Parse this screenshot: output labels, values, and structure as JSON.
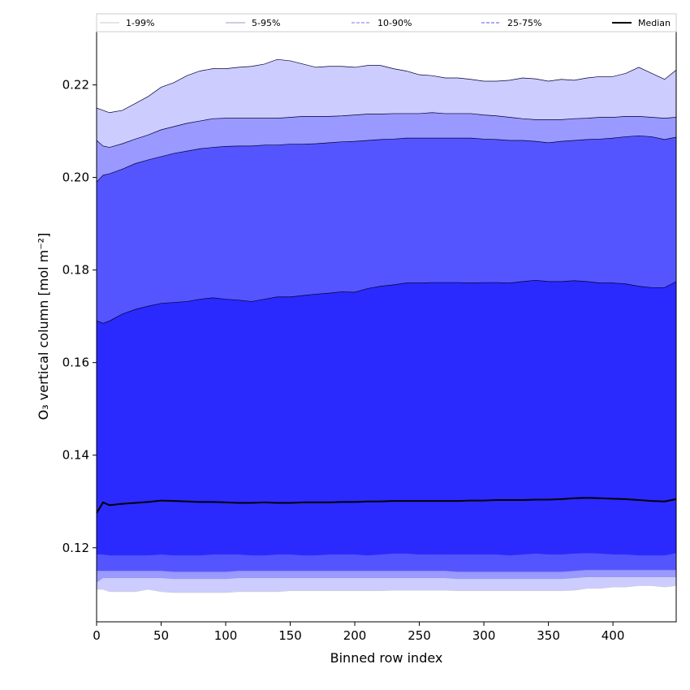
{
  "chart_data": {
    "type": "area",
    "xlabel": "Binned row index",
    "ylabel": "O₃ vertical column [mol m⁻²]",
    "xlim": [
      0,
      449
    ],
    "ylim": [
      0.104,
      0.2315
    ],
    "x_ticks": [
      0,
      50,
      100,
      150,
      200,
      250,
      300,
      350,
      400
    ],
    "y_ticks": [
      0.12,
      0.14,
      0.16,
      0.18,
      0.2,
      0.22
    ],
    "legend_position": "top",
    "x": [
      0,
      5,
      10,
      20,
      30,
      40,
      50,
      60,
      70,
      80,
      90,
      100,
      110,
      120,
      130,
      140,
      150,
      160,
      170,
      180,
      190,
      200,
      210,
      220,
      230,
      240,
      250,
      260,
      270,
      280,
      290,
      300,
      310,
      320,
      330,
      340,
      350,
      360,
      370,
      380,
      390,
      400,
      410,
      420,
      430,
      440,
      449
    ],
    "series": [
      {
        "name": "1-99%",
        "color": "#ccccff",
        "line_color": "#cccccc",
        "lower": [
          0.111,
          0.111,
          0.1105,
          0.1105,
          0.1105,
          0.111,
          0.1105,
          0.1103,
          0.1103,
          0.1103,
          0.1103,
          0.1103,
          0.1105,
          0.1105,
          0.1105,
          0.1105,
          0.1107,
          0.1107,
          0.1107,
          0.1107,
          0.1107,
          0.1107,
          0.1107,
          0.1107,
          0.1108,
          0.1108,
          0.1108,
          0.1108,
          0.1108,
          0.1107,
          0.1107,
          0.1107,
          0.1107,
          0.1107,
          0.1107,
          0.1107,
          0.1107,
          0.1107,
          0.1108,
          0.1112,
          0.1112,
          0.1115,
          0.1115,
          0.1118,
          0.1118,
          0.1115,
          0.1118
        ],
        "upper": [
          0.215,
          0.2145,
          0.214,
          0.2145,
          0.216,
          0.2175,
          0.2195,
          0.2205,
          0.222,
          0.223,
          0.2235,
          0.2235,
          0.2238,
          0.224,
          0.2245,
          0.2255,
          0.2252,
          0.2245,
          0.2238,
          0.224,
          0.224,
          0.2238,
          0.2242,
          0.2242,
          0.2235,
          0.223,
          0.2222,
          0.222,
          0.2215,
          0.2215,
          0.2212,
          0.2208,
          0.2208,
          0.221,
          0.2215,
          0.2213,
          0.2208,
          0.2212,
          0.221,
          0.2215,
          0.2218,
          0.2218,
          0.2225,
          0.2238,
          0.2225,
          0.2212,
          0.2232
        ]
      },
      {
        "name": "5-95%",
        "color": "#9999ff",
        "line_color": "#9999cc",
        "lower": [
          0.1125,
          0.1135,
          0.1135,
          0.1135,
          0.1135,
          0.1135,
          0.1135,
          0.1133,
          0.1133,
          0.1133,
          0.1133,
          0.1133,
          0.1135,
          0.1135,
          0.1135,
          0.1135,
          0.1135,
          0.1135,
          0.1135,
          0.1135,
          0.1135,
          0.1135,
          0.1135,
          0.1135,
          0.1135,
          0.1135,
          0.1135,
          0.1135,
          0.1135,
          0.1133,
          0.1133,
          0.1133,
          0.1133,
          0.1133,
          0.1133,
          0.1133,
          0.1133,
          0.1133,
          0.1135,
          0.1137,
          0.1137,
          0.1137,
          0.1137,
          0.1137,
          0.1137,
          0.1137,
          0.1137
        ],
        "upper": [
          0.208,
          0.2068,
          0.2065,
          0.2073,
          0.2083,
          0.2092,
          0.2103,
          0.211,
          0.2117,
          0.2122,
          0.2127,
          0.2128,
          0.2128,
          0.2128,
          0.2128,
          0.2128,
          0.213,
          0.2132,
          0.2132,
          0.2132,
          0.2133,
          0.2135,
          0.2137,
          0.2137,
          0.2138,
          0.2138,
          0.2138,
          0.214,
          0.2138,
          0.2138,
          0.2138,
          0.2135,
          0.2133,
          0.213,
          0.2127,
          0.2125,
          0.2125,
          0.2125,
          0.2127,
          0.2128,
          0.213,
          0.213,
          0.2132,
          0.2132,
          0.213,
          0.2128,
          0.213
        ]
      },
      {
        "name": "10-90%",
        "color": "#5555ff",
        "line_color": "#7777ee",
        "lower": [
          0.115,
          0.115,
          0.115,
          0.115,
          0.115,
          0.115,
          0.115,
          0.1148,
          0.1148,
          0.1148,
          0.1148,
          0.1148,
          0.115,
          0.115,
          0.115,
          0.115,
          0.115,
          0.115,
          0.115,
          0.115,
          0.115,
          0.115,
          0.115,
          0.115,
          0.115,
          0.115,
          0.115,
          0.115,
          0.115,
          0.1148,
          0.1148,
          0.1148,
          0.1148,
          0.1148,
          0.1148,
          0.1148,
          0.1148,
          0.1148,
          0.115,
          0.1152,
          0.1152,
          0.1152,
          0.1152,
          0.1152,
          0.1152,
          0.1152,
          0.1152
        ],
        "upper": [
          0.199,
          0.2005,
          0.2008,
          0.2018,
          0.203,
          0.2038,
          0.2045,
          0.2052,
          0.2057,
          0.2062,
          0.2065,
          0.2067,
          0.2068,
          0.2068,
          0.207,
          0.207,
          0.2072,
          0.2072,
          0.2073,
          0.2075,
          0.2077,
          0.2078,
          0.208,
          0.2082,
          0.2083,
          0.2085,
          0.2085,
          0.2085,
          0.2085,
          0.2085,
          0.2085,
          0.2083,
          0.2082,
          0.208,
          0.208,
          0.2078,
          0.2075,
          0.2078,
          0.208,
          0.2082,
          0.2083,
          0.2085,
          0.2088,
          0.209,
          0.2088,
          0.2082,
          0.2087
        ]
      },
      {
        "name": "25-75%",
        "color": "#2a2aff",
        "line_color": "#5555ee",
        "lower": [
          0.1185,
          0.1185,
          0.1183,
          0.1183,
          0.1183,
          0.1183,
          0.1185,
          0.1183,
          0.1183,
          0.1183,
          0.1185,
          0.1185,
          0.1185,
          0.1183,
          0.1183,
          0.1185,
          0.1185,
          0.1183,
          0.1183,
          0.1185,
          0.1185,
          0.1185,
          0.1183,
          0.1185,
          0.1187,
          0.1187,
          0.1185,
          0.1185,
          0.1185,
          0.1185,
          0.1185,
          0.1185,
          0.1185,
          0.1183,
          0.1185,
          0.1187,
          0.1185,
          0.1185,
          0.1187,
          0.1188,
          0.1187,
          0.1185,
          0.1185,
          0.1183,
          0.1183,
          0.1183,
          0.1188
        ],
        "upper": [
          0.169,
          0.1685,
          0.169,
          0.1705,
          0.1715,
          0.1722,
          0.1728,
          0.173,
          0.1732,
          0.1737,
          0.174,
          0.1737,
          0.1735,
          0.1732,
          0.1737,
          0.1742,
          0.1742,
          0.1745,
          0.1748,
          0.175,
          0.1753,
          0.1752,
          0.176,
          0.1765,
          0.1768,
          0.1772,
          0.1772,
          0.1773,
          0.1773,
          0.1773,
          0.1772,
          0.1773,
          0.1773,
          0.1772,
          0.1775,
          0.1778,
          0.1775,
          0.1775,
          0.1777,
          0.1775,
          0.1772,
          0.1772,
          0.177,
          0.1765,
          0.1762,
          0.1762,
          0.1775
        ]
      }
    ],
    "median": {
      "name": "Median",
      "color": "#000000",
      "values": [
        0.1275,
        0.1298,
        0.1292,
        0.1295,
        0.1297,
        0.1299,
        0.1302,
        0.1301,
        0.13,
        0.1299,
        0.1299,
        0.1298,
        0.1297,
        0.1297,
        0.1298,
        0.1297,
        0.1297,
        0.1298,
        0.1298,
        0.1298,
        0.1299,
        0.1299,
        0.13,
        0.13,
        0.1301,
        0.1301,
        0.1301,
        0.1301,
        0.1301,
        0.1301,
        0.1302,
        0.1302,
        0.1303,
        0.1303,
        0.1303,
        0.1304,
        0.1304,
        0.1305,
        0.1307,
        0.1308,
        0.1307,
        0.1306,
        0.1305,
        0.1303,
        0.1301,
        0.13,
        0.1305
      ]
    }
  }
}
